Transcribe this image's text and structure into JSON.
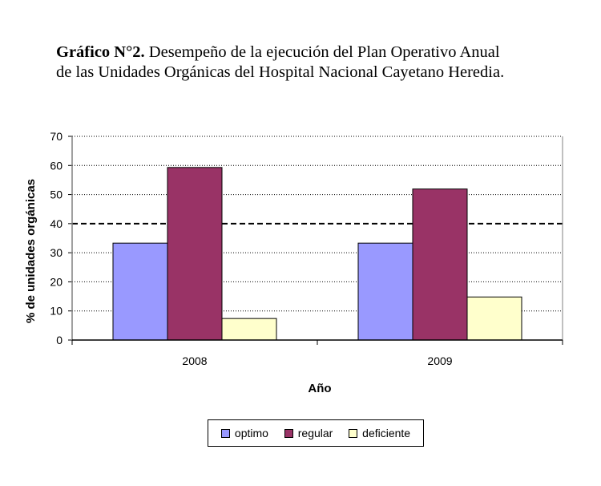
{
  "caption": {
    "bold": "Gráfico N°2.",
    "line1": " Desempeño de la ejecución del Plan Operativo Anual",
    "line2": "de las Unidades Orgánicas del Hospital Nacional Cayetano Heredia."
  },
  "chart_data": {
    "type": "bar",
    "title": "Gráfico N°2. Desempeño de la ejecución del Plan Operativo Anual de las Unidades Orgánicas del Hospital Nacional Cayetano Heredia.",
    "xlabel": "Año",
    "ylabel": "% de unidades orgánicas",
    "categories": [
      "2008",
      "2009"
    ],
    "yticks": [
      "0",
      "10",
      "20",
      "30",
      "40",
      "50",
      "60",
      "70"
    ],
    "ylim": [
      0,
      70
    ],
    "reference_line": 40,
    "legend_position": "bottom",
    "series": [
      {
        "name": "optimo",
        "color": "#9999ff",
        "values": [
          33.3,
          33.3
        ]
      },
      {
        "name": "regular",
        "color": "#993366",
        "values": [
          59.3,
          51.9
        ]
      },
      {
        "name": "deficiente",
        "color": "#ffffcc",
        "values": [
          7.4,
          14.8
        ]
      }
    ]
  }
}
